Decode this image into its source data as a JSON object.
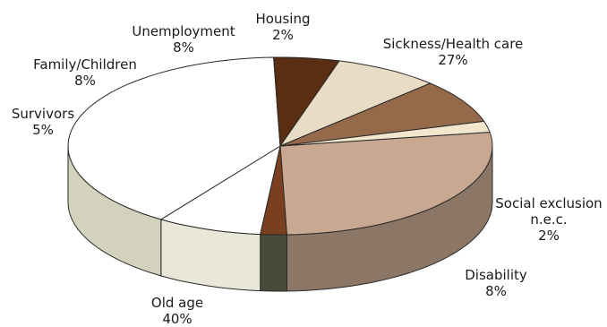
{
  "chart_data": {
    "type": "pie",
    "style": "3d",
    "title": "",
    "slices": [
      {
        "label": "Sickness/Health care",
        "value": 27,
        "display": "27%",
        "color": "#c8a890"
      },
      {
        "label": "Social exclusion n.e.c.",
        "value": 2,
        "display": "2%",
        "color": "#7a3f1e"
      },
      {
        "label": "Disability",
        "value": 8,
        "display": "8%",
        "color": "#ffffff"
      },
      {
        "label": "Old age",
        "value": 40,
        "display": "40%",
        "color": "#ffffff"
      },
      {
        "label": "Survivors",
        "value": 5,
        "display": "5%",
        "color": "#5a2e12"
      },
      {
        "label": "Family/Children",
        "value": 8,
        "display": "8%",
        "color": "#e9dcc4"
      },
      {
        "label": "Unemployment",
        "value": 8,
        "display": "8%",
        "color": "#946a4a"
      },
      {
        "label": "Housing",
        "value": 2,
        "display": "2%",
        "color": "#f2e6cc"
      }
    ]
  }
}
